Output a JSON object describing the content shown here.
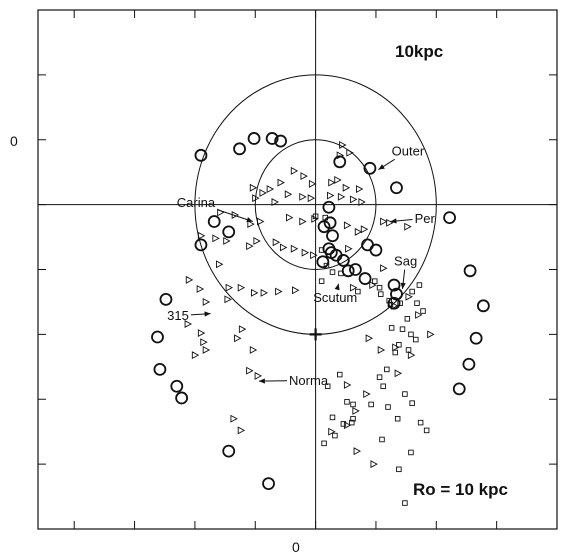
{
  "chart_data": {
    "type": "scatter",
    "title": "",
    "xlabel": "",
    "ylabel": "",
    "grid": false,
    "xlim": [
      -23,
      20
    ],
    "ylim": [
      -25,
      15
    ],
    "x_ticks": [
      0
    ],
    "y_ticks": [
      0
    ],
    "tick_labels": {
      "x0": "0",
      "y0": "0"
    },
    "circles": [
      {
        "label": "10kpc",
        "center": [
          0,
          0
        ],
        "radius": 10
      },
      {
        "center": [
          0,
          0
        ],
        "radius": 5
      }
    ],
    "sun": [
      0,
      -10
    ],
    "inner_label": "Ro = 10 kpc",
    "annotations": [
      {
        "text": "Outer",
        "x": 6.3,
        "y": 3.8,
        "arrow_to": [
          5.2,
          2.7
        ]
      },
      {
        "text": "Carina",
        "x": -11.5,
        "y": -0.2,
        "arrow_to": [
          -5.2,
          -1.3
        ]
      },
      {
        "text": "Per",
        "x": 8.2,
        "y": -1.4,
        "arrow_to": [
          6.2,
          -1.3
        ]
      },
      {
        "text": "Sag",
        "x": 6.5,
        "y": -4.7,
        "arrow_to": [
          7.2,
          -6.5
        ]
      },
      {
        "text": "Scutum",
        "x": -0.2,
        "y": -7.5,
        "arrow_to": [
          1.9,
          -6.1
        ]
      },
      {
        "text": "315",
        "x": -12.3,
        "y": -8.9,
        "arrow_to": [
          -8.7,
          -8.4
        ]
      },
      {
        "text": "Norma",
        "x": -2.2,
        "y": -13.9,
        "arrow_to": [
          -4.7,
          -13.6
        ]
      }
    ],
    "series": [
      {
        "marker": "circle",
        "points": [
          [
            -9.5,
            3.8
          ],
          [
            -6.3,
            4.3
          ],
          [
            -5.1,
            5.1
          ],
          [
            -3.6,
            5.1
          ],
          [
            -2.9,
            4.9
          ],
          [
            2.0,
            3.3
          ],
          [
            4.5,
            2.8
          ],
          [
            6.7,
            1.3
          ],
          [
            1.1,
            -0.2
          ],
          [
            -8.4,
            -1.3
          ],
          [
            -7.2,
            -2.1
          ],
          [
            -9.5,
            -3.1
          ],
          [
            0.7,
            -1.7
          ],
          [
            1.2,
            -1.4
          ],
          [
            1.4,
            -2.4
          ],
          [
            1.1,
            -3.4
          ],
          [
            1.3,
            -3.7
          ],
          [
            1.7,
            -3.9
          ],
          [
            0.6,
            -4.4
          ],
          [
            2.3,
            -4.3
          ],
          [
            4.3,
            -3.1
          ],
          [
            5.0,
            -3.5
          ],
          [
            11.1,
            -1.0
          ],
          [
            12.8,
            -5.1
          ],
          [
            13.9,
            -7.8
          ],
          [
            13.3,
            -10.3
          ],
          [
            12.7,
            -12.3
          ],
          [
            11.9,
            -14.2
          ],
          [
            6.5,
            -6.2
          ],
          [
            6.7,
            -6.9
          ],
          [
            6.5,
            -7.6
          ],
          [
            3.3,
            -5.0
          ],
          [
            4.1,
            -5.7
          ],
          [
            2.7,
            -5.1
          ],
          [
            -12.4,
            -7.3
          ],
          [
            -13.1,
            -10.2
          ],
          [
            -12.9,
            -12.7
          ],
          [
            -11.5,
            -14.0
          ],
          [
            -11.1,
            -14.9
          ],
          [
            -7.2,
            -19.0
          ],
          [
            -3.9,
            -21.5
          ]
        ]
      },
      {
        "marker": "triangle",
        "points": [
          [
            2.2,
            4.6
          ],
          [
            2.8,
            4.0
          ],
          [
            2.0,
            3.8
          ],
          [
            -1.8,
            2.6
          ],
          [
            -1.0,
            2.2
          ],
          [
            -0.3,
            1.6
          ],
          [
            1.3,
            1.7
          ],
          [
            1.8,
            1.9
          ],
          [
            2.5,
            1.3
          ],
          [
            3.6,
            1.2
          ],
          [
            -2.9,
            1.7
          ],
          [
            -3.8,
            1.2
          ],
          [
            -4.4,
            0.9
          ],
          [
            -5.2,
            1.3
          ],
          [
            -5.0,
            0.5
          ],
          [
            -3.4,
            0.2
          ],
          [
            -2.3,
            0.8
          ],
          [
            -1.1,
            0.6
          ],
          [
            -0.4,
            0.5
          ],
          [
            1.2,
            0.7
          ],
          [
            2.1,
            0.6
          ],
          [
            3.1,
            0.4
          ],
          [
            3.8,
            0.2
          ],
          [
            -7.9,
            -0.6
          ],
          [
            -6.7,
            -0.8
          ],
          [
            -5.4,
            -1.5
          ],
          [
            -4.6,
            -1.3
          ],
          [
            -2.2,
            -1.0
          ],
          [
            -1.1,
            -1.3
          ],
          [
            -0.1,
            -1.1
          ],
          [
            2.6,
            -1.6
          ],
          [
            3.5,
            -2.1
          ],
          [
            4.0,
            -1.9
          ],
          [
            5.6,
            -1.3
          ],
          [
            6.1,
            -1.4
          ],
          [
            7.6,
            -1.7
          ],
          [
            -9.5,
            -2.4
          ],
          [
            -8.3,
            -2.6
          ],
          [
            -7.4,
            -2.8
          ],
          [
            -5.5,
            -3.2
          ],
          [
            -4.9,
            -2.8
          ],
          [
            -3.3,
            -2.9
          ],
          [
            -2.7,
            -3.3
          ],
          [
            -1.8,
            -3.4
          ],
          [
            -0.9,
            -3.7
          ],
          [
            -0.2,
            -3.9
          ],
          [
            2.7,
            -3.4
          ],
          [
            -8.0,
            -4.6
          ],
          [
            -10.5,
            -5.8
          ],
          [
            -9.6,
            -6.5
          ],
          [
            -7.2,
            -6.4
          ],
          [
            -6.2,
            -6.4
          ],
          [
            -5.1,
            -6.8
          ],
          [
            -4.3,
            -6.8
          ],
          [
            -3.1,
            -6.7
          ],
          [
            -1.7,
            -6.6
          ],
          [
            -7.3,
            -7.3
          ],
          [
            -9.1,
            -7.5
          ],
          [
            -10.6,
            -9.2
          ],
          [
            -9.5,
            -9.9
          ],
          [
            -9.3,
            -10.6
          ],
          [
            -9.1,
            -11.2
          ],
          [
            -10.0,
            -11.6
          ],
          [
            -6.1,
            -9.6
          ],
          [
            -6.5,
            -10.3
          ],
          [
            -5.2,
            -11.2
          ],
          [
            -5.5,
            -12.8
          ],
          [
            -4.8,
            -13.2
          ],
          [
            -6.8,
            -16.5
          ],
          [
            -6.2,
            -17.4
          ],
          [
            3.1,
            -6.4
          ],
          [
            4.7,
            -6.2
          ],
          [
            5.6,
            -4.9
          ],
          [
            6.5,
            -7.8
          ],
          [
            7.7,
            -7.1
          ],
          [
            8.5,
            -8.5
          ],
          [
            9.5,
            -10.0
          ],
          [
            4.4,
            -10.3
          ],
          [
            5.4,
            -11.2
          ],
          [
            6.6,
            -11.0
          ],
          [
            7.9,
            -11.6
          ],
          [
            6.8,
            -13.0
          ],
          [
            4.2,
            -14.6
          ],
          [
            2.6,
            -13.9
          ],
          [
            3.3,
            -15.9
          ],
          [
            2.6,
            -17.0
          ],
          [
            1.3,
            -17.5
          ],
          [
            3.4,
            -19.0
          ],
          [
            4.8,
            -20.0
          ]
        ]
      },
      {
        "marker": "square",
        "points": [
          [
            0.0,
            -0.9
          ],
          [
            0.8,
            -1.0
          ],
          [
            0.5,
            -3.5
          ],
          [
            0.9,
            -4.7
          ],
          [
            1.4,
            -5.2
          ],
          [
            2.1,
            -5.3
          ],
          [
            0.5,
            -5.9
          ],
          [
            3.5,
            -6.7
          ],
          [
            4.9,
            -5.9
          ],
          [
            5.3,
            -6.4
          ],
          [
            5.4,
            -6.9
          ],
          [
            6.1,
            -7.4
          ],
          [
            6.2,
            -7.7
          ],
          [
            7.0,
            -7.6
          ],
          [
            8.6,
            -6.2
          ],
          [
            8.0,
            -6.7
          ],
          [
            8.4,
            -7.6
          ],
          [
            8.9,
            -8.2
          ],
          [
            7.6,
            -8.8
          ],
          [
            7.2,
            -9.6
          ],
          [
            7.9,
            -10.0
          ],
          [
            8.3,
            -10.4
          ],
          [
            7.7,
            -11.2
          ],
          [
            6.3,
            -9.5
          ],
          [
            6.9,
            -10.8
          ],
          [
            6.6,
            -11.4
          ],
          [
            5.9,
            -12.7
          ],
          [
            5.3,
            -13.3
          ],
          [
            5.6,
            -14.0
          ],
          [
            7.4,
            -14.6
          ],
          [
            8.0,
            -15.3
          ],
          [
            6.0,
            -15.6
          ],
          [
            4.6,
            -15.4
          ],
          [
            6.8,
            -16.5
          ],
          [
            8.7,
            -16.8
          ],
          [
            9.2,
            -17.4
          ],
          [
            5.5,
            -18.1
          ],
          [
            7.9,
            -19.1
          ],
          [
            3.0,
            -16.8
          ],
          [
            1.6,
            -17.8
          ],
          [
            2.3,
            -16.9
          ],
          [
            1.4,
            -16.4
          ],
          [
            2.6,
            -15.2
          ],
          [
            3.1,
            -15.4
          ],
          [
            1.0,
            -14.0
          ],
          [
            2.0,
            -13.1
          ],
          [
            0.7,
            -18.4
          ],
          [
            3.1,
            -16.5
          ],
          [
            7.4,
            -23.0
          ],
          [
            6.9,
            -20.4
          ]
        ]
      }
    ]
  }
}
